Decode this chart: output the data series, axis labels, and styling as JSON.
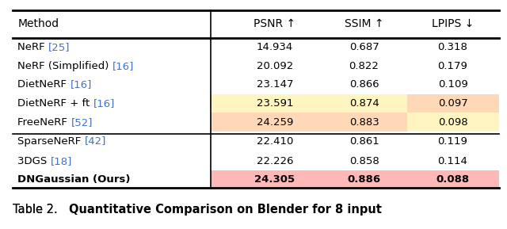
{
  "columns": [
    "Method",
    "PSNR ↑",
    "SSIM ↑",
    "LPIPS ↓"
  ],
  "rows": [
    {
      "method_parts": [
        {
          "text": "NeRF ",
          "color": "#000000"
        },
        {
          "text": "[25]",
          "color": "#4472c4"
        }
      ],
      "values": [
        "14.934",
        "0.687",
        "0.318"
      ],
      "bg": [
        null,
        null,
        null
      ],
      "bold": false,
      "group": 1
    },
    {
      "method_parts": [
        {
          "text": "NeRF (Simplified) ",
          "color": "#000000"
        },
        {
          "text": "[16]",
          "color": "#4472c4"
        }
      ],
      "values": [
        "20.092",
        "0.822",
        "0.179"
      ],
      "bg": [
        null,
        null,
        null
      ],
      "bold": false,
      "group": 1
    },
    {
      "method_parts": [
        {
          "text": "DietNeRF ",
          "color": "#000000"
        },
        {
          "text": "[16]",
          "color": "#4472c4"
        }
      ],
      "values": [
        "23.147",
        "0.866",
        "0.109"
      ],
      "bg": [
        null,
        null,
        null
      ],
      "bold": false,
      "group": 1
    },
    {
      "method_parts": [
        {
          "text": "DietNeRF + ft ",
          "color": "#000000"
        },
        {
          "text": "[16]",
          "color": "#4472c4"
        }
      ],
      "values": [
        "23.591",
        "0.874",
        "0.097"
      ],
      "bg": [
        "#fff5c0",
        "#fff5c0",
        "#ffd8b8"
      ],
      "bold": false,
      "group": 1
    },
    {
      "method_parts": [
        {
          "text": "FreeNeRF ",
          "color": "#000000"
        },
        {
          "text": "[52]",
          "color": "#4472c4"
        }
      ],
      "values": [
        "24.259",
        "0.883",
        "0.098"
      ],
      "bg": [
        "#ffd8b8",
        "#ffd8b8",
        "#fff5c0"
      ],
      "bold": false,
      "group": 1
    },
    {
      "method_parts": [
        {
          "text": "SparseNeRF ",
          "color": "#000000"
        },
        {
          "text": "[42]",
          "color": "#4472c4"
        }
      ],
      "values": [
        "22.410",
        "0.861",
        "0.119"
      ],
      "bg": [
        null,
        null,
        null
      ],
      "bold": false,
      "group": 1
    },
    {
      "method_parts": [
        {
          "text": "3DGS ",
          "color": "#000000"
        },
        {
          "text": "[18]",
          "color": "#4472c4"
        }
      ],
      "values": [
        "22.226",
        "0.858",
        "0.114"
      ],
      "bg": [
        null,
        null,
        null
      ],
      "bold": false,
      "group": 2
    },
    {
      "method_parts": [
        {
          "text": "DNGaussian (Ours)",
          "color": "#000000"
        }
      ],
      "values": [
        "24.305",
        "0.886",
        "0.088"
      ],
      "bg": [
        "#ffb8b8",
        "#ffb8b8",
        "#ffb8b8"
      ],
      "bold": true,
      "group": 2
    }
  ],
  "caption_normal": "Table 2.   ",
  "caption_bold": "Quantitative Comparison on Blender for 8 input",
  "figsize": [
    6.4,
    2.89
  ],
  "dpi": 100
}
